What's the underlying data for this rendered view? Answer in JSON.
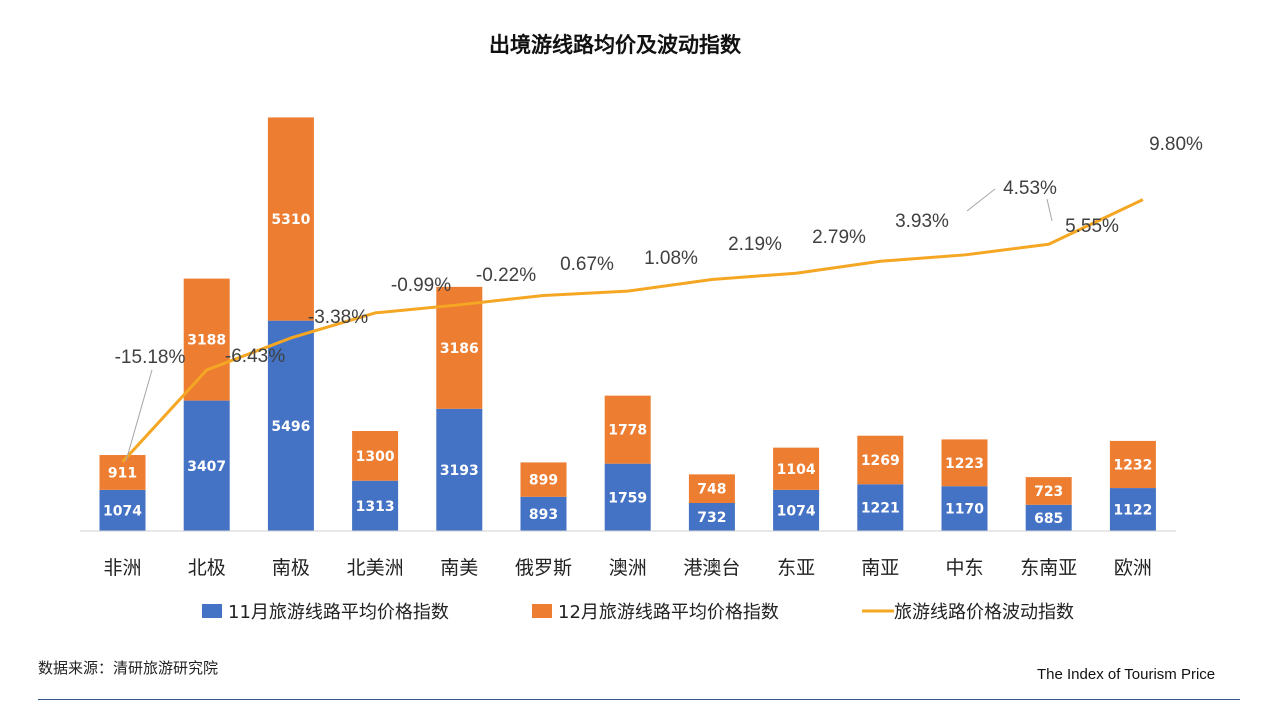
{
  "chart_data": {
    "type": "bar",
    "stacked": true,
    "title": "出境游线路均价及波动指数",
    "categories": [
      "非洲",
      "北极",
      "南极",
      "北美洲",
      "南美",
      "俄罗斯",
      "澳洲",
      "港澳台",
      "东亚",
      "南亚",
      "中东",
      "东南亚",
      "欧洲"
    ],
    "series": [
      {
        "name": "11月旅游线路平均价格指数",
        "type": "bar",
        "color": "#4472C4",
        "values": [
          1074,
          3407,
          5496,
          1313,
          3193,
          893,
          1759,
          732,
          1074,
          1221,
          1170,
          685,
          1122
        ]
      },
      {
        "name": "12月旅游线路平均价格指数",
        "type": "bar",
        "color": "#ED7D31",
        "values": [
          911,
          3188,
          5310,
          1300,
          3186,
          899,
          1778,
          748,
          1104,
          1269,
          1223,
          723,
          1232
        ]
      },
      {
        "name": "旅游线路价格波动指数",
        "type": "line",
        "color": "#F5A623",
        "unit": "%",
        "values": [
          -15.18,
          -6.43,
          -3.38,
          -0.99,
          -0.22,
          0.67,
          1.08,
          2.19,
          2.79,
          3.93,
          4.53,
          5.55,
          9.8
        ],
        "labels": [
          "-15.18%",
          "-6.43%",
          "-3.38%",
          "-0.99%",
          "-0.22%",
          "0.67%",
          "1.08%",
          "2.19%",
          "2.79%",
          "3.93%",
          "4.53%",
          "5.55%",
          "9.80%"
        ]
      }
    ],
    "legend_position": "bottom",
    "grid": false
  },
  "footer": {
    "source": "数据来源：清研旅游研究院",
    "subtitle": "The Index of Tourism Price"
  }
}
